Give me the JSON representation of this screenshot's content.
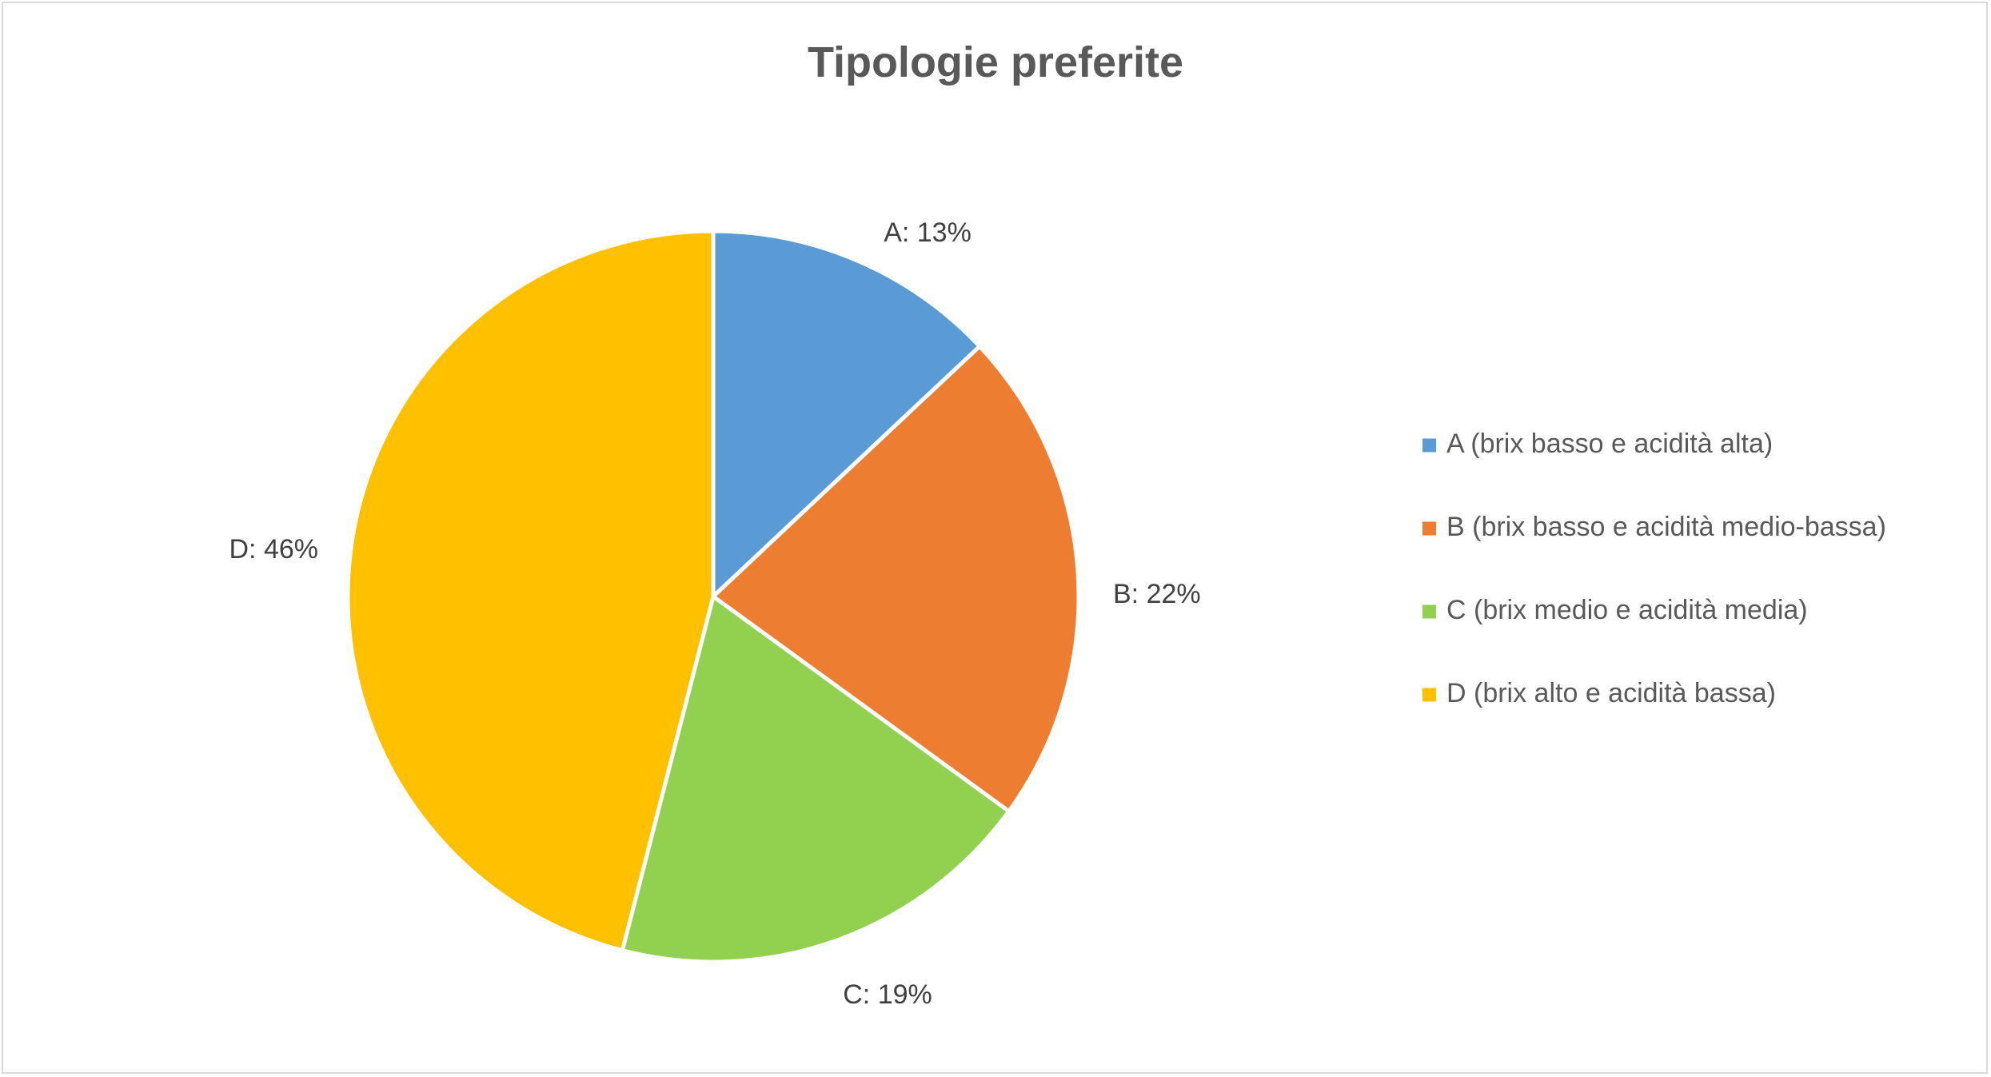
{
  "chart_data": {
    "type": "pie",
    "title": "Tipologie preferite",
    "categories": [
      "A (brix basso e acidità alta)",
      "B (brix basso e acidità medio-bassa)",
      "C (brix medio e acidità media)",
      "D (brix alto e acidità bassa)"
    ],
    "values": [
      13,
      22,
      19,
      46
    ],
    "data_labels": [
      "A: 13%",
      "B: 22%",
      "C: 19%",
      "D: 46%"
    ],
    "colors": [
      "#5b9bd5",
      "#ed7d31",
      "#92d050",
      "#ffc000"
    ],
    "legend_position": "right",
    "start_angle": "top",
    "direction": "clockwise"
  }
}
